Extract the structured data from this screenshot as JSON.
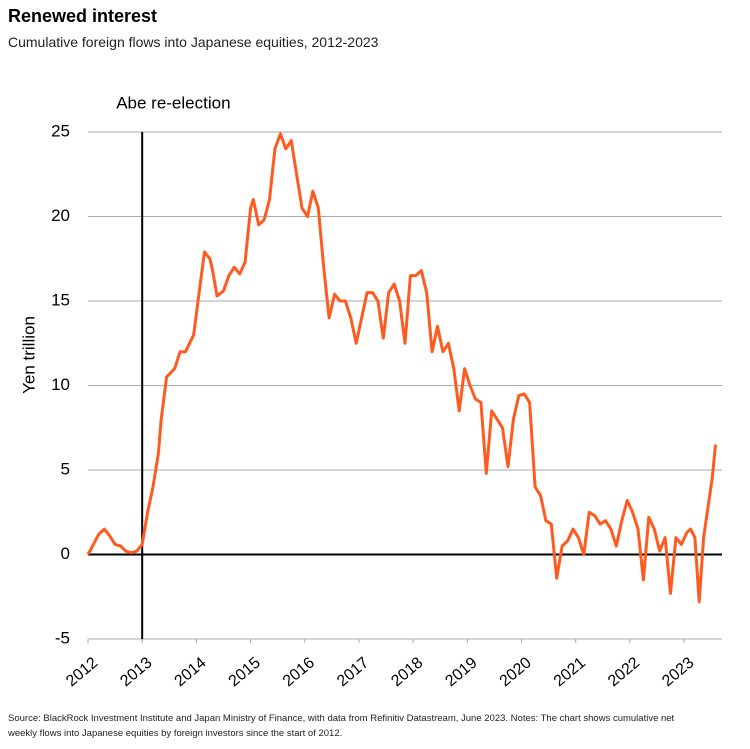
{
  "chart_data": {
    "type": "line",
    "title": "Renewed interest",
    "subtitle": "Cumulative foreign flows into Japanese equities, 2012-2023",
    "y_label": "Yen trillion",
    "source": "Source: BlackRock Investment Institute and Japan Ministry of Finance, with data from Refinitiv Datastream, June 2023. Notes: The chart shows cumulative net weekly flows into Japanese equities by foreign investors since the start of 2012.",
    "annotation": {
      "text": "Abe re-election",
      "x": 2013
    },
    "xlim": [
      2012,
      2023.7
    ],
    "xticks": [
      2012,
      2013,
      2014,
      2015,
      2016,
      2017,
      2018,
      2019,
      2020,
      2021,
      2022,
      2023
    ],
    "ylim": [
      -5,
      25
    ],
    "yticks": [
      -5,
      0,
      5,
      10,
      15,
      20,
      25
    ],
    "grid": true,
    "x": [
      2012.0,
      2012.1,
      2012.2,
      2012.3,
      2012.4,
      2012.5,
      2012.6,
      2012.7,
      2012.8,
      2012.9,
      2013.0,
      2013.1,
      2013.2,
      2013.3,
      2013.35,
      2013.45,
      2013.6,
      2013.7,
      2013.8,
      2013.95,
      2014.05,
      2014.15,
      2014.25,
      2014.3,
      2014.38,
      2014.5,
      2014.6,
      2014.7,
      2014.8,
      2014.9,
      2015.0,
      2015.05,
      2015.15,
      2015.25,
      2015.35,
      2015.45,
      2015.55,
      2015.65,
      2015.75,
      2015.85,
      2015.95,
      2016.05,
      2016.15,
      2016.25,
      2016.35,
      2016.45,
      2016.55,
      2016.65,
      2016.75,
      2016.85,
      2016.95,
      2017.05,
      2017.15,
      2017.25,
      2017.35,
      2017.45,
      2017.55,
      2017.65,
      2017.75,
      2017.85,
      2017.95,
      2018.05,
      2018.15,
      2018.25,
      2018.35,
      2018.45,
      2018.55,
      2018.65,
      2018.75,
      2018.85,
      2018.95,
      2019.05,
      2019.15,
      2019.25,
      2019.35,
      2019.45,
      2019.55,
      2019.65,
      2019.75,
      2019.85,
      2019.95,
      2020.05,
      2020.15,
      2020.25,
      2020.35,
      2020.45,
      2020.55,
      2020.65,
      2020.75,
      2020.85,
      2020.95,
      2021.05,
      2021.15,
      2021.25,
      2021.35,
      2021.45,
      2021.55,
      2021.65,
      2021.75,
      2021.85,
      2021.95,
      2022.05,
      2022.15,
      2022.25,
      2022.35,
      2022.45,
      2022.55,
      2022.65,
      2022.75,
      2022.85,
      2022.95,
      2023.05,
      2023.12,
      2023.2,
      2023.28,
      2023.36,
      2023.45,
      2023.52,
      2023.58
    ],
    "series": [
      {
        "name": "Cumulative foreign flows",
        "color": "#ff5a1f",
        "values": [
          0,
          0.6,
          1.2,
          1.5,
          1.1,
          0.6,
          0.5,
          0.2,
          0.1,
          0.2,
          0.6,
          2.5,
          4,
          6,
          8,
          10.5,
          11,
          12,
          12,
          13,
          15.5,
          17.9,
          17.5,
          16.8,
          15.3,
          15.6,
          16.5,
          17,
          16.6,
          17.3,
          20.5,
          21,
          19.5,
          19.8,
          21,
          24,
          24.9,
          24,
          24.5,
          22.5,
          20.5,
          20,
          21.5,
          20.5,
          17,
          14,
          15.4,
          15,
          15,
          14,
          12.5,
          14,
          15.5,
          15.5,
          15,
          12.8,
          15.5,
          16,
          15,
          12.5,
          16.5,
          16.5,
          16.8,
          15.5,
          12,
          13.5,
          12,
          12.5,
          11,
          8.5,
          11,
          10,
          9.2,
          9,
          4.8,
          8.5,
          8,
          7.5,
          5.2,
          8,
          9.4,
          9.5,
          9,
          4,
          3.5,
          2,
          1.8,
          -1.4,
          0.5,
          0.8,
          1.5,
          1,
          0,
          2.5,
          2.3,
          1.8,
          2,
          1.5,
          0.5,
          2,
          3.2,
          2.5,
          1.5,
          -1.5,
          2.2,
          1.5,
          0.2,
          1,
          -2.3,
          1,
          0.6,
          1.3,
          1.5,
          1,
          -2.8,
          1,
          3,
          4.5,
          6.5
        ]
      }
    ]
  }
}
